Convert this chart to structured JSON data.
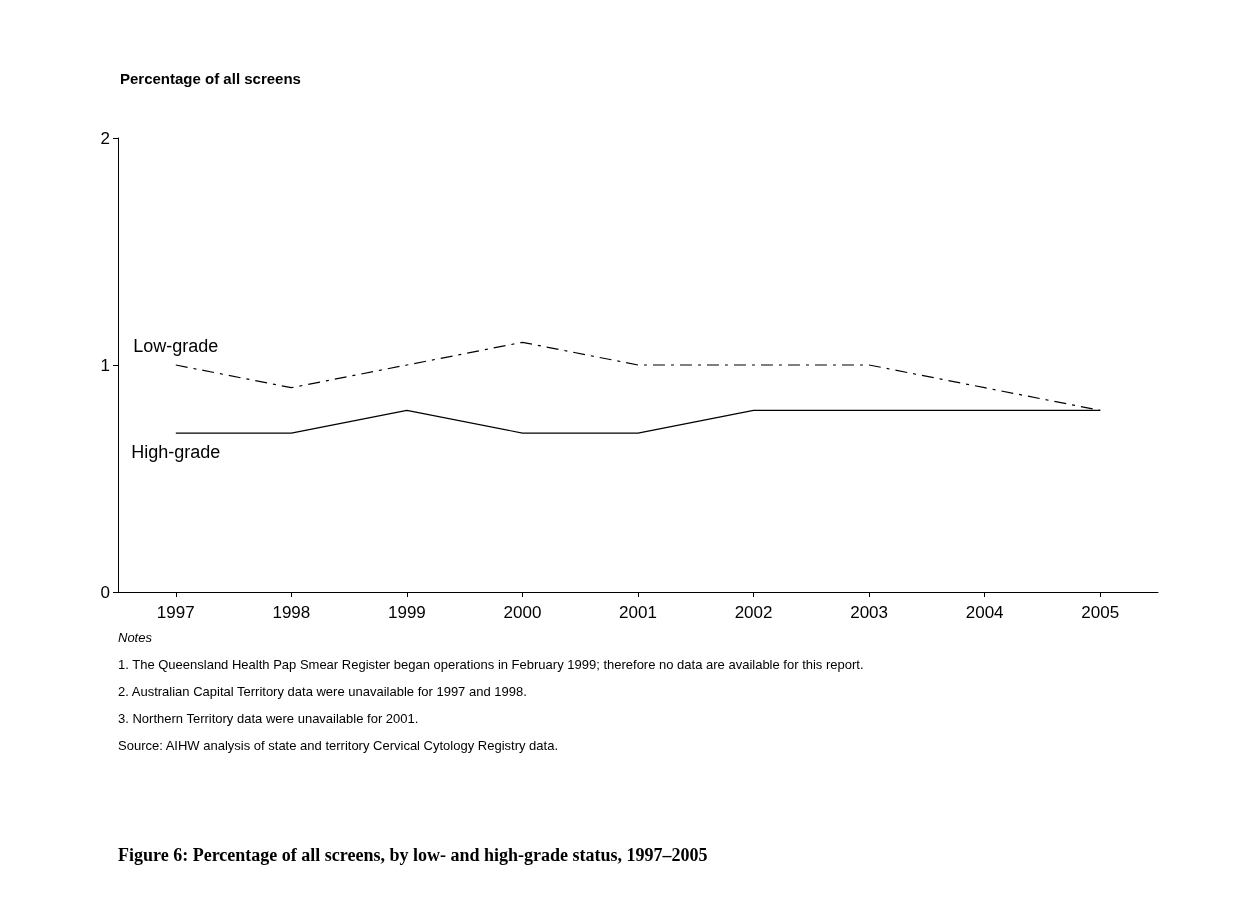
{
  "chart_data": {
    "type": "line",
    "title": "Figure 6: Percentage of all screens, by low- and high-grade status, 1997–2005",
    "ylabel": "Percentage of all screens",
    "categories": [
      "1997",
      "1998",
      "1999",
      "2000",
      "2001",
      "2002",
      "2003",
      "2004",
      "2005"
    ],
    "series": [
      {
        "name": "Low-grade",
        "color": "#000000",
        "line_style": "dashed",
        "values": [
          1.0,
          0.9,
          1.0,
          1.1,
          1.0,
          1.0,
          1.0,
          0.9,
          0.8
        ]
      },
      {
        "name": "High-grade",
        "color": "#000000",
        "line_style": "solid",
        "values": [
          0.7,
          0.7,
          0.8,
          0.7,
          0.7,
          0.8,
          0.8,
          0.8,
          0.8
        ]
      }
    ],
    "ylim": [
      0,
      2
    ],
    "yticks": [
      0,
      1,
      2
    ],
    "grid": false,
    "legend": false,
    "marker": "none",
    "annotations": [
      "Notes",
      "1. The Queensland Health Pap Smear Register began operations in February 1999; therefore no data are available for this report.",
      "2. Australian Capital Territory data were unavailable for 1997 and 1998.",
      "3. Northern Territory data were unavailable for 2001.",
      "Source: AIHW analysis of state and territory Cervical Cytology Registry data."
    ]
  }
}
